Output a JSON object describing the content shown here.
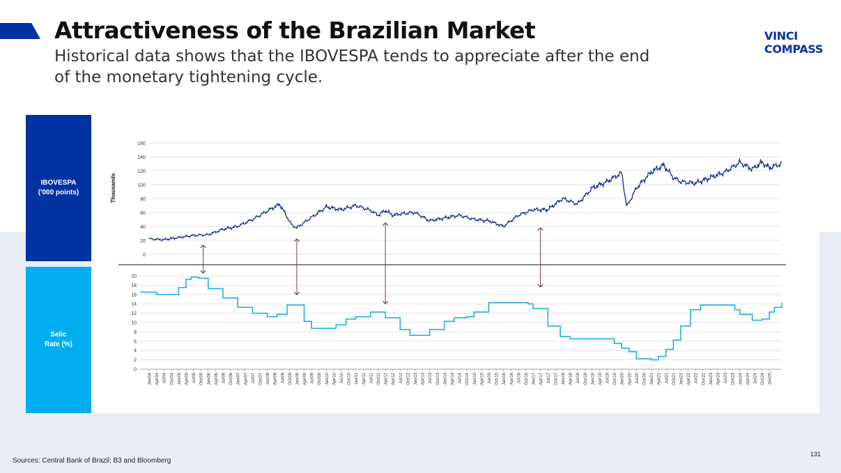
{
  "slide": {
    "title": "Attractiveness of the Brazilian Market",
    "subtitle": "Historical data shows that the IBOVESPA tends to appreciate after the end of the monetary tightening cycle.",
    "logo": {
      "line1": "VINCI",
      "line2": "COMPASS"
    },
    "sources": "Sources: Central Bank of Brazil; B3 and Bloomberg",
    "page_number": "131",
    "colors": {
      "navy": "#0033a0",
      "cyan": "#00aeef",
      "ibov_line": "#0b2a87",
      "selic_line": "#13a8e0",
      "arrow": "#7a3550",
      "lower_bg": "#e9edf6"
    }
  },
  "labels": {
    "ibovespa": {
      "line1": "IBOVESPA",
      "line2": "('000 points)"
    },
    "selic": {
      "line1": "Selic",
      "line2": "Rate (%)"
    }
  },
  "chart_data": [
    {
      "type": "line",
      "title": "IBOVESPA",
      "ylabel": "Thousands",
      "ylim": [
        0,
        160
      ],
      "yticks": [
        0,
        20,
        40,
        60,
        80,
        100,
        120,
        140,
        160
      ],
      "grid": true,
      "x_range": [
        2004.0,
        2025.42
      ],
      "series": [
        {
          "name": "IBOVESPA ('000 points)",
          "x": [
            2004.0,
            2004.5,
            2005.0,
            2005.5,
            2006.0,
            2006.5,
            2007.0,
            2007.5,
            2008.0,
            2008.42,
            2008.83,
            2009.0,
            2009.5,
            2010.0,
            2010.5,
            2011.0,
            2011.5,
            2011.75,
            2012.0,
            2012.25,
            2012.5,
            2013.0,
            2013.5,
            2014.0,
            2014.5,
            2015.0,
            2015.5,
            2016.0,
            2016.5,
            2017.0,
            2017.5,
            2018.0,
            2018.5,
            2019.0,
            2019.5,
            2020.0,
            2020.17,
            2020.5,
            2021.0,
            2021.42,
            2021.75,
            2022.0,
            2022.5,
            2023.0,
            2023.5,
            2024.0,
            2024.42,
            2024.75,
            2025.0,
            2025.42
          ],
          "values": [
            22,
            21,
            24,
            27,
            28,
            36,
            40,
            50,
            62,
            72,
            42,
            38,
            53,
            68,
            64,
            70,
            63,
            56,
            63,
            56,
            58,
            60,
            48,
            52,
            56,
            50,
            48,
            40,
            56,
            64,
            64,
            80,
            72,
            95,
            104,
            117,
            68,
            95,
            118,
            128,
            110,
            104,
            102,
            110,
            118,
            132,
            122,
            132,
            124,
            130
          ]
        }
      ]
    },
    {
      "type": "line",
      "title": "Selic Rate",
      "ylabel": "",
      "ylim": [
        0,
        20
      ],
      "yticks": [
        0,
        2,
        4,
        6,
        8,
        10,
        12,
        14,
        16,
        18,
        20
      ],
      "grid": true,
      "step": true,
      "x_range": [
        2004.0,
        2025.42
      ],
      "xtick_labels": [
        "Jan/04",
        "Apr/04",
        "Jul/04",
        "Oct/04",
        "Jan/05",
        "Apr/05",
        "Jul/05",
        "Oct/05",
        "Jan/06",
        "Apr/06",
        "Jul/06",
        "Oct/06",
        "Jan/07",
        "Apr/07",
        "Jul/07",
        "Oct/07",
        "Jan/08",
        "Apr/08",
        "Jul/08",
        "Oct/08",
        "Jan/09",
        "Apr/09",
        "Jul/09",
        "Oct/09",
        "Jan/10",
        "Apr/10",
        "Jul/10",
        "Oct/10",
        "Jan/11",
        "Apr/11",
        "Jul/11",
        "Oct/11",
        "Jan/12",
        "Apr/12",
        "Jul/12",
        "Oct/12",
        "Jan/13",
        "Apr/13",
        "Jul/13",
        "Oct/13",
        "Jan/14",
        "Apr/14",
        "Jul/14",
        "Oct/14",
        "Jan/15",
        "Apr/15",
        "Jul/15",
        "Oct/15",
        "Jan/16",
        "Apr/16",
        "Jul/16",
        "Oct/16",
        "Jan/17",
        "Apr/17",
        "Jul/17",
        "Oct/17",
        "Jan/18",
        "Apr/18",
        "Jul/18",
        "Oct/18",
        "Jan/19",
        "Apr/19",
        "Jul/19",
        "Oct/19",
        "Jan/20",
        "Apr/20",
        "Jul/20",
        "Oct/20",
        "Jan/21",
        "Apr/21",
        "Jul/21",
        "Oct/21",
        "Jan/22",
        "Apr/22",
        "Jul/22",
        "Oct/22",
        "Jan/23",
        "Apr/23",
        "Jul/23",
        "Oct/23",
        "Jan/24",
        "Apr/24",
        "Jul/24",
        "Oct/24",
        "Jan/25"
      ],
      "series": [
        {
          "name": "Selic Rate (%)",
          "x": [
            2004.0,
            2004.25,
            2004.75,
            2005.0,
            2005.25,
            2005.42,
            2005.67,
            2006.0,
            2006.5,
            2007.0,
            2007.5,
            2008.0,
            2008.33,
            2008.67,
            2008.92,
            2009.25,
            2009.5,
            2010.0,
            2010.33,
            2010.67,
            2011.0,
            2011.5,
            2012.0,
            2012.5,
            2012.83,
            2013.25,
            2013.5,
            2014.0,
            2014.33,
            2014.75,
            2015.0,
            2015.5,
            2016.0,
            2016.5,
            2016.83,
            2017.0,
            2017.5,
            2017.92,
            2018.25,
            2019.0,
            2019.5,
            2019.75,
            2020.0,
            2020.25,
            2020.5,
            2021.0,
            2021.25,
            2021.5,
            2021.75,
            2022.0,
            2022.33,
            2022.67,
            2023.0,
            2023.58,
            2023.83,
            2024.0,
            2024.42,
            2024.75,
            2025.0,
            2025.17,
            2025.42
          ],
          "values": [
            16.5,
            16.0,
            16.0,
            17.5,
            19.25,
            19.75,
            19.5,
            17.25,
            15.25,
            13.25,
            12.0,
            11.25,
            11.75,
            13.75,
            13.75,
            10.25,
            8.75,
            8.75,
            9.5,
            10.75,
            11.25,
            12.25,
            11.0,
            8.5,
            7.25,
            7.25,
            8.5,
            10.25,
            11.0,
            11.25,
            12.25,
            14.25,
            14.25,
            14.25,
            14.0,
            13.0,
            9.25,
            7.0,
            6.5,
            6.5,
            6.5,
            5.5,
            4.5,
            3.75,
            2.25,
            2.0,
            2.75,
            4.25,
            6.25,
            9.25,
            12.75,
            13.75,
            13.75,
            13.75,
            12.75,
            11.75,
            10.5,
            10.75,
            12.25,
            13.25,
            14.25
          ]
        }
      ]
    }
  ],
  "annotations": {
    "arrows": [
      {
        "x": 2005.83,
        "from": "ibovespa",
        "to": "selic"
      },
      {
        "x": 2009.0,
        "from": "ibovespa",
        "to": "selic"
      },
      {
        "x": 2012.0,
        "from": "ibovespa",
        "to": "selic"
      },
      {
        "x": 2017.25,
        "from": "ibovespa",
        "to": "selic"
      }
    ]
  }
}
